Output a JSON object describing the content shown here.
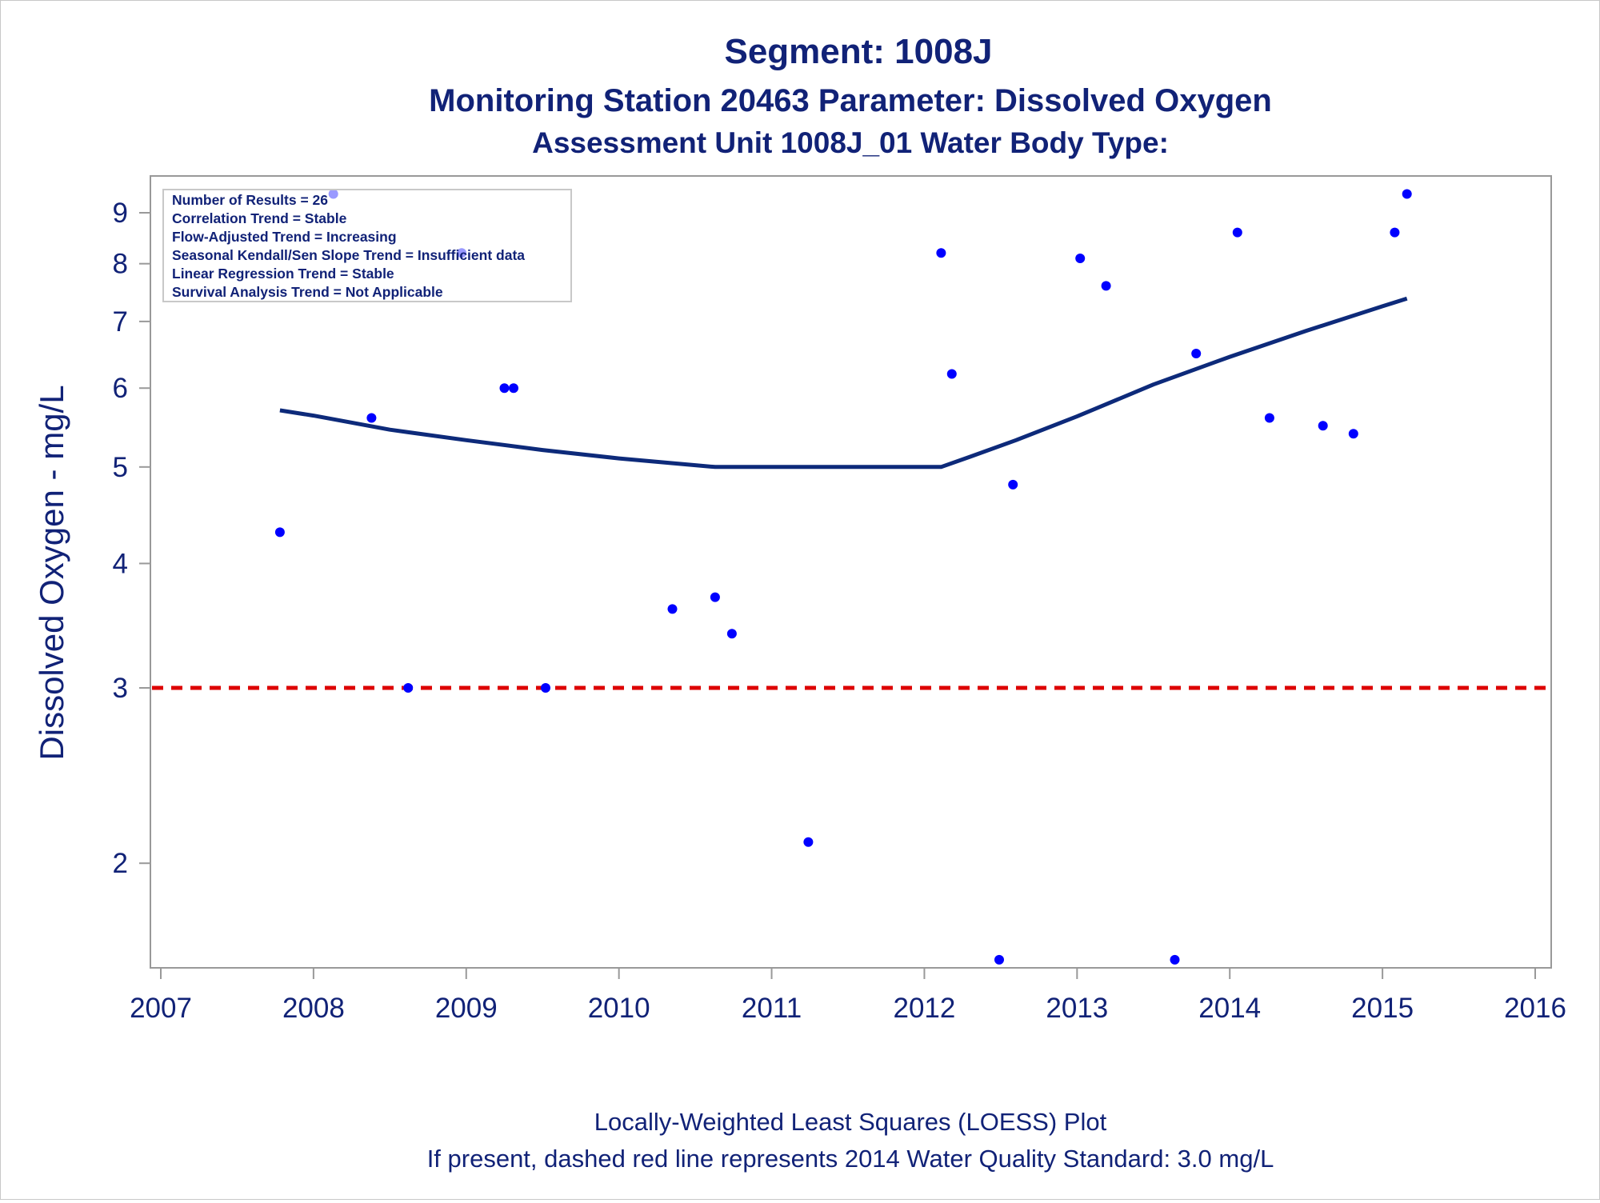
{
  "header": {
    "title": "Segment: 1008J",
    "subtitle1": "Monitoring Station 20463 Parameter: Dissolved Oxygen",
    "subtitle2": "Assessment Unit 1008J_01   Water Body Type:"
  },
  "stats_box": {
    "lines": [
      "Number of Results = 26",
      "Correlation Trend = Stable",
      "Flow-Adjusted Trend = Increasing",
      "Seasonal Kendall/Sen Slope Trend = Insufficient data",
      "Linear Regression Trend = Stable",
      "Survival Analysis Trend = Not Applicable"
    ]
  },
  "footer": {
    "line1": "Locally-Weighted Least Squares (LOESS) Plot",
    "line2": "If present, dashed red line represents 2014 Water Quality Standard: 3.0 mg/L"
  },
  "colors": {
    "text": "#112277",
    "points": "#0000ff",
    "loess": "#0d2a7a",
    "standard": "#dd0000",
    "axis": "#999999"
  },
  "chart_data": {
    "type": "scatter",
    "title": "Segment: 1008J",
    "xlabel": "",
    "ylabel": "Dissolved Oxygen - mg/L",
    "x_scale": "time",
    "y_scale": "log",
    "xlim": [
      2007,
      2016
    ],
    "ylim": [
      1.6,
      9.5
    ],
    "x_ticks": [
      2007,
      2008,
      2009,
      2010,
      2011,
      2012,
      2013,
      2014,
      2015,
      2016
    ],
    "y_ticks": [
      2,
      3,
      4,
      5,
      6,
      7,
      8,
      9
    ],
    "grid": false,
    "series": [
      {
        "kind": "points",
        "x": [
          2007.78,
          2008.13,
          2008.38,
          2008.62,
          2008.97,
          2009.25,
          2009.31,
          2009.52,
          2010.35,
          2010.63,
          2010.74,
          2011.24,
          2012.11,
          2012.18,
          2012.49,
          2012.58,
          2013.02,
          2013.19,
          2013.64,
          2013.78,
          2014.05,
          2014.26,
          2014.61,
          2014.81,
          2015.08,
          2015.16
        ],
        "values": [
          4.3,
          9.4,
          5.6,
          3.0,
          8.2,
          6.0,
          6.0,
          3.0,
          3.6,
          3.7,
          3.4,
          2.1,
          8.2,
          6.2,
          1.6,
          4.8,
          8.1,
          7.6,
          1.6,
          6.5,
          8.6,
          5.6,
          5.5,
          5.4,
          8.6,
          9.4
        ]
      },
      {
        "kind": "loess",
        "x": [
          2007.78,
          2008.0,
          2008.5,
          2009.0,
          2009.5,
          2010.0,
          2010.5,
          2010.63,
          2011.0,
          2011.5,
          2011.8,
          2012.11,
          2012.3,
          2012.6,
          2013.0,
          2013.5,
          2014.0,
          2014.5,
          2015.0,
          2015.16
        ],
        "values": [
          5.7,
          5.63,
          5.45,
          5.32,
          5.2,
          5.1,
          5.02,
          5.0,
          5.0,
          5.0,
          5.0,
          5.0,
          5.12,
          5.32,
          5.62,
          6.05,
          6.45,
          6.85,
          7.25,
          7.38
        ]
      }
    ],
    "reference_line": {
      "y": 3.0,
      "style": "dashed"
    }
  }
}
